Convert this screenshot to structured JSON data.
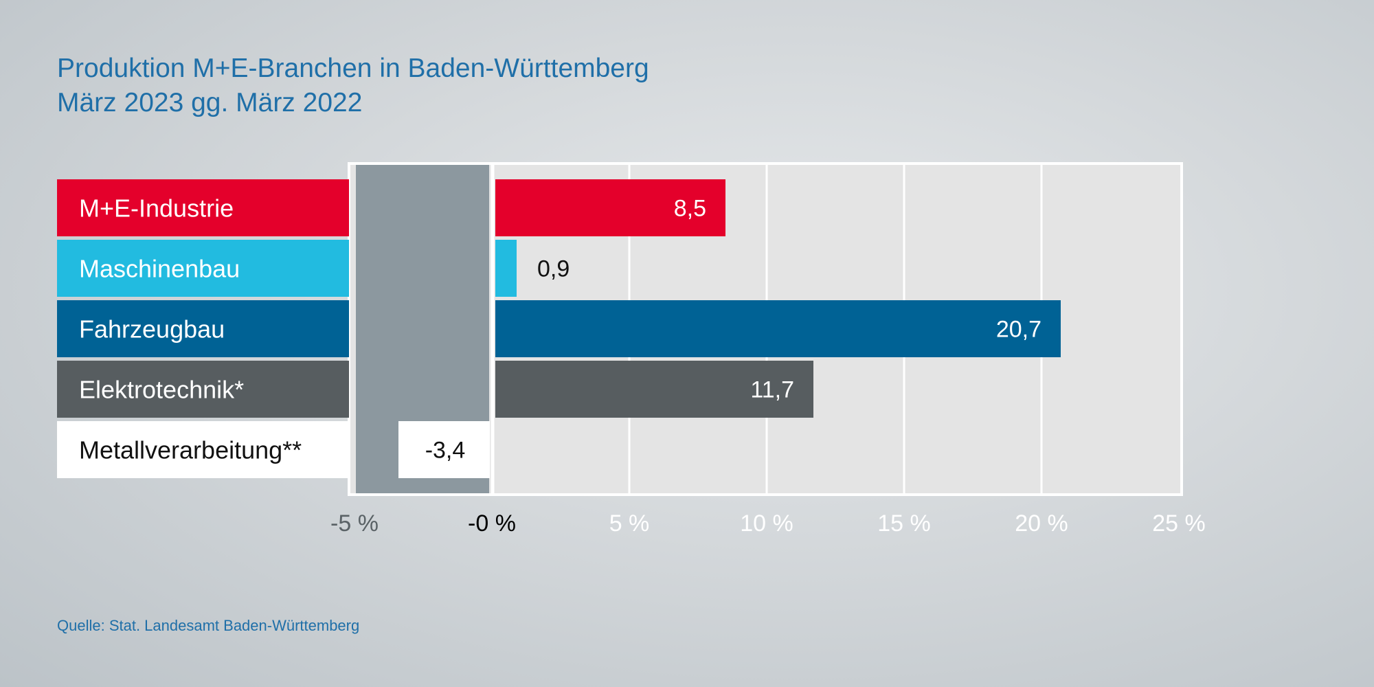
{
  "title_line1": "Produktion M+E-Branchen in Baden-Württemberg",
  "title_line2": "März 2023 gg. März 2022",
  "source": "Quelle: Stat. Landesamt Baden-Württemberg",
  "colors": {
    "plot_background": "#e4e4e4",
    "plot_frame": "#ffffff",
    "negative_zone": "#8c989f",
    "tick_label": "#ffffff",
    "zero_tick_label": "#000000",
    "title": "#1f6fa8"
  },
  "chart_data": {
    "type": "bar",
    "orientation": "horizontal",
    "title": "Produktion M+E-Branchen in Baden-Württemberg – März 2023 gg. März 2022",
    "unit": "%",
    "xlim": [
      -5,
      25
    ],
    "ticks": [
      -5,
      0,
      5,
      10,
      15,
      20,
      25
    ],
    "tick_labels": [
      "-5 %",
      "-0 %",
      "5 %",
      "10 %",
      "15 %",
      "20 %",
      "25 %"
    ],
    "grid": true,
    "categories": [
      "M+E-Industrie",
      "Maschinenbau",
      "Fahrzeugbau",
      "Elektrotechnik*",
      "Metallverarbeitung**"
    ],
    "values": [
      8.5,
      0.9,
      20.7,
      11.7,
      -3.4
    ],
    "value_labels": [
      "8,5",
      "0,9",
      "20,7",
      "11,7",
      "-3,4"
    ],
    "bar_colors": [
      "#e4002b",
      "#22bbe0",
      "#006295",
      "#575d60",
      "#ffffff"
    ],
    "label_text_colors": [
      "#ffffff",
      "#ffffff",
      "#ffffff",
      "#ffffff",
      "#111111"
    ],
    "value_text_colors": [
      "#ffffff",
      "#111111",
      "#ffffff",
      "#ffffff",
      "#111111"
    ]
  }
}
